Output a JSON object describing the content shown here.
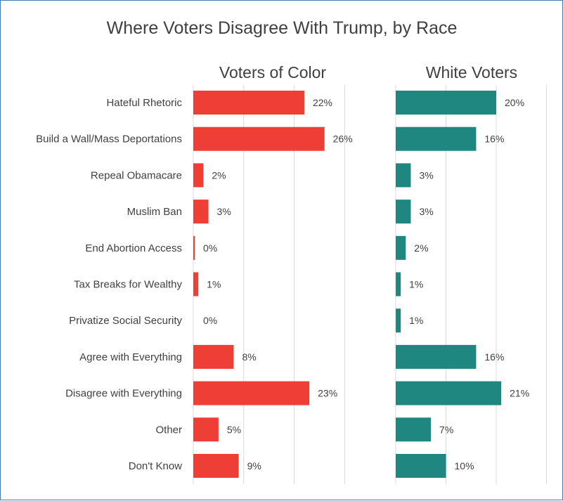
{
  "chart_data": {
    "type": "bar",
    "orientation": "horizontal",
    "title": "Where Voters Disagree With Trump, by Race",
    "categories": [
      "Hateful Rhetoric",
      "Build a Wall/Mass Deportations",
      "Repeal Obamacare",
      "Muslim Ban",
      "End Abortion Access",
      "Tax Breaks for Wealthy",
      "Privatize Social Security",
      "Agree with Everything",
      "Disagree with Everything",
      "Other",
      "Don't Know"
    ],
    "panels": [
      {
        "title": "Voters of Color",
        "color": "#ef3e36",
        "values": [
          22,
          26,
          2,
          3,
          0,
          1,
          0,
          8,
          23,
          5,
          9
        ],
        "labels": [
          "22%",
          "26%",
          "2%",
          "3%",
          "0%",
          "1%",
          "0%",
          "8%",
          "23%",
          "5%",
          "9%"
        ],
        "xlim": [
          0,
          30
        ],
        "gridlines": [
          0,
          10,
          20,
          30
        ]
      },
      {
        "title": "White Voters",
        "color": "#1f8780",
        "values": [
          20,
          16,
          3,
          3,
          2,
          1,
          1,
          16,
          21,
          7,
          10
        ],
        "labels": [
          "20%",
          "16%",
          "3%",
          "3%",
          "2%",
          "1%",
          "1%",
          "16%",
          "21%",
          "7%",
          "10%"
        ],
        "xlim": [
          0,
          30
        ],
        "gridlines": [
          0,
          10,
          20,
          30
        ]
      }
    ],
    "grid": true,
    "legend": "none"
  }
}
